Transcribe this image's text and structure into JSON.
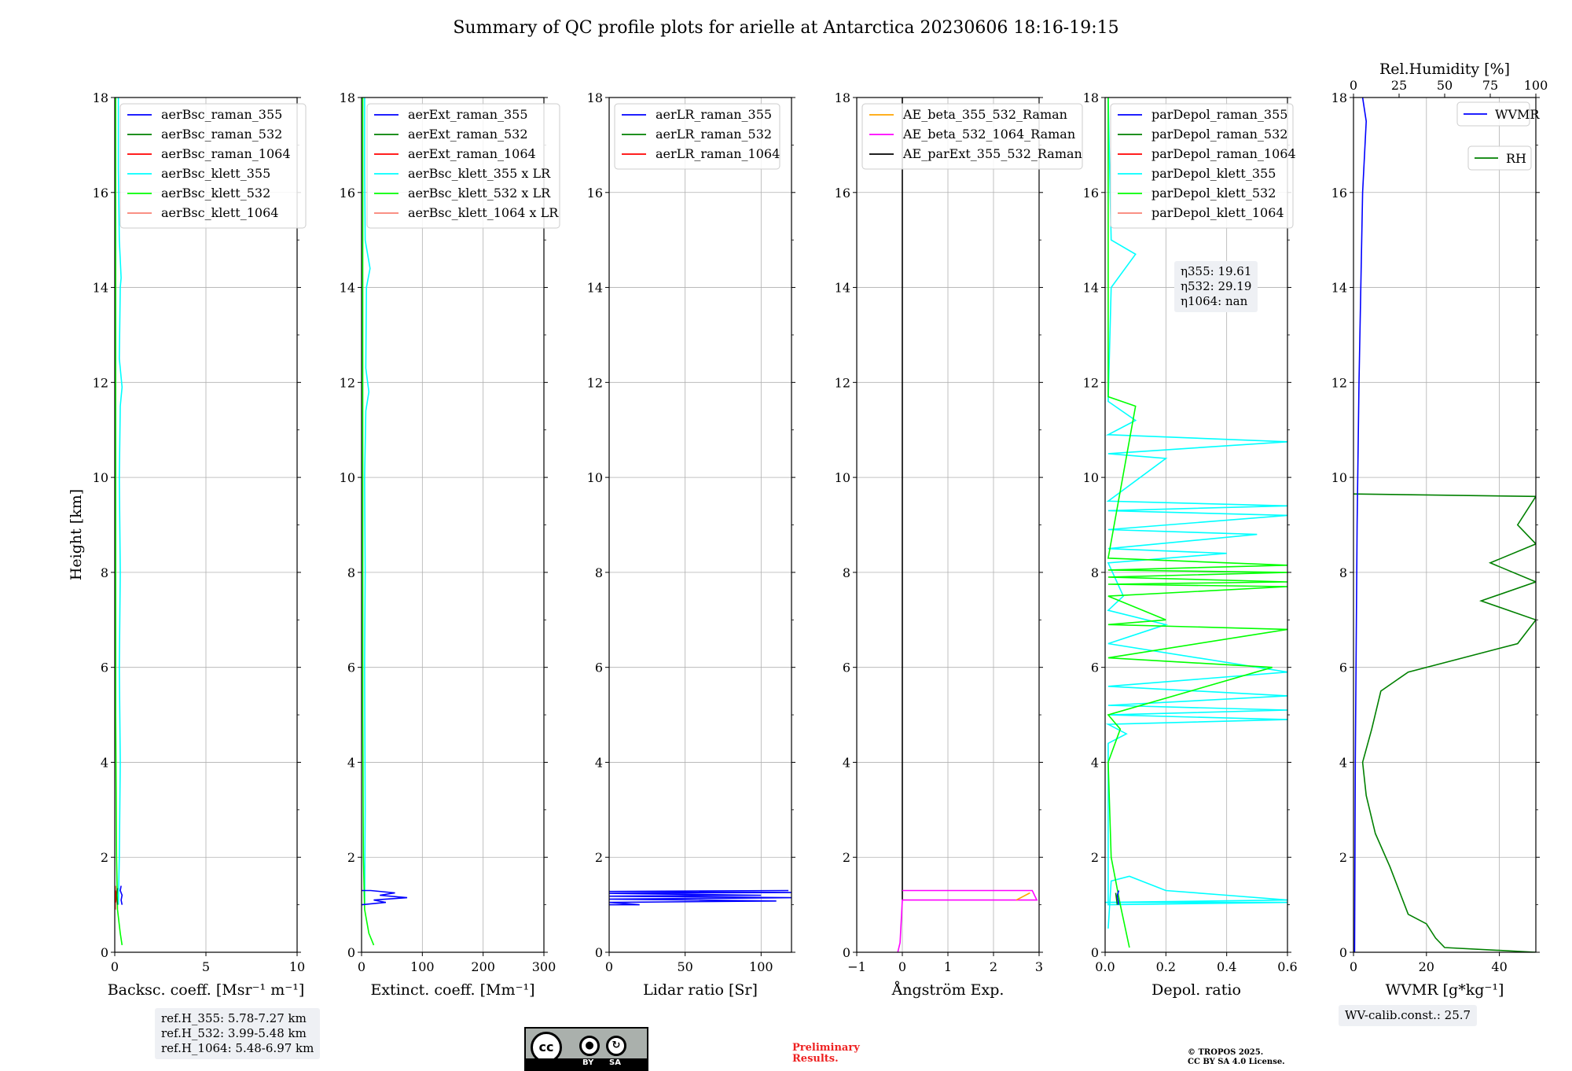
{
  "title": "Summary of QC profile plots for arielle at Antarctica 20230606 18:16-19:15",
  "shared_ylabel": "Height [km]",
  "ref_heights": [
    "ref.H_355: 5.78-7.27 km",
    "ref.H_532: 3.99-5.48 km",
    "ref.H_1064: 5.48-6.97 km"
  ],
  "eta": [
    "η355: 19.61",
    "η532: 29.19",
    "η1064: nan"
  ],
  "wv_calib": "WV-calib.const.: 25.7",
  "preliminary": [
    "Preliminary",
    "Results."
  ],
  "copyright": [
    "© TROPOS 2025.",
    "CC BY SA 4.0 License."
  ],
  "license_badge": {
    "cc": "cc",
    "by": "BY",
    "sa": "SA"
  },
  "colors": {
    "blue": "#0000ff",
    "green": "#008000",
    "red": "#ff0000",
    "cyan": "#00ffff",
    "lime": "#00ff00",
    "salmon": "#fa8072",
    "orange": "#ffa500",
    "magenta": "#ff00ff",
    "black": "#000000"
  },
  "chart_data": [
    {
      "type": "line",
      "xlabel": "Backsc. coeff. [Msr⁻¹ m⁻¹]",
      "xlim": [
        0,
        10
      ],
      "ylim": [
        0,
        18
      ],
      "xticks": [
        "0",
        "5",
        "10"
      ],
      "legend_loc": "upper-left",
      "legend": [
        "aerBsc_raman_355",
        "aerBsc_raman_532",
        "aerBsc_raman_1064",
        "aerBsc_klett_355",
        "aerBsc_klett_532",
        "aerBsc_klett_1064"
      ],
      "series": [
        {
          "name": "aerBsc_klett_355",
          "color": "cyan",
          "points": [
            [
              0.2,
              1.0
            ],
            [
              0.25,
              2.0
            ],
            [
              0.3,
              4.0
            ],
            [
              0.25,
              6.0
            ],
            [
              0.3,
              8.0
            ],
            [
              0.25,
              10.0
            ],
            [
              0.3,
              11.5
            ],
            [
              0.4,
              11.9
            ],
            [
              0.25,
              12.5
            ],
            [
              0.3,
              14.0
            ],
            [
              0.35,
              14.2
            ],
            [
              0.25,
              15.0
            ],
            [
              0.2,
              16.5
            ],
            [
              0.2,
              18.0
            ]
          ]
        },
        {
          "name": "aerBsc_klett_532",
          "color": "lime",
          "points": [
            [
              0.4,
              0.15
            ],
            [
              0.3,
              0.4
            ],
            [
              0.15,
              0.9
            ],
            [
              0.1,
              2.0
            ],
            [
              0.05,
              5.0
            ],
            [
              0.05,
              12.0
            ],
            [
              0.05,
              18.0
            ]
          ]
        },
        {
          "name": "aerBsc_klett_1064",
          "color": "salmon",
          "points": [
            [
              0.05,
              0.9
            ],
            [
              0.05,
              1.4
            ]
          ]
        },
        {
          "name": "aerBsc_raman_355",
          "color": "blue",
          "points": [
            [
              0.4,
              1.0
            ],
            [
              0.35,
              1.1
            ],
            [
              0.4,
              1.2
            ],
            [
              0.3,
              1.3
            ],
            [
              0.35,
              1.4
            ]
          ]
        },
        {
          "name": "aerBsc_raman_532",
          "color": "green",
          "points": [
            [
              0.15,
              1.0
            ],
            [
              0.1,
              1.2
            ],
            [
              0.15,
              1.35
            ]
          ]
        },
        {
          "name": "aerBsc_raman_1064",
          "color": "red",
          "points": [
            [
              0.05,
              1.05
            ],
            [
              0.05,
              1.3
            ]
          ]
        }
      ]
    },
    {
      "type": "line",
      "xlabel": "Extinct. coeff. [Mm⁻¹]",
      "xlim": [
        0,
        300
      ],
      "ylim": [
        0,
        18
      ],
      "xticks": [
        "0",
        "100",
        "200",
        "300"
      ],
      "legend_loc": "upper-left",
      "legend": [
        "aerExt_raman_355",
        "aerExt_raman_532",
        "aerExt_raman_1064",
        "aerBsc_klett_355 x LR",
        "aerBsc_klett_532 x LR",
        "aerBsc_klett_1064 x LR"
      ],
      "series": [
        {
          "name": "aerBsc_klett_355 x LR",
          "color": "cyan",
          "points": [
            [
              5,
              1.0
            ],
            [
              6,
              3.0
            ],
            [
              5,
              6.0
            ],
            [
              6,
              8.0
            ],
            [
              5,
              10.0
            ],
            [
              7,
              11.4
            ],
            [
              12,
              11.8
            ],
            [
              7,
              12.3
            ],
            [
              8,
              14.0
            ],
            [
              14,
              14.4
            ],
            [
              6,
              15.0
            ],
            [
              5,
              16.5
            ],
            [
              5,
              18.0
            ]
          ]
        },
        {
          "name": "aerBsc_klett_532 x LR",
          "color": "lime",
          "points": [
            [
              20,
              0.15
            ],
            [
              12,
              0.4
            ],
            [
              5,
              0.9
            ],
            [
              3,
              2.0
            ],
            [
              2,
              5.0
            ],
            [
              2,
              18.0
            ]
          ]
        },
        {
          "name": "aerExt_raman_355",
          "color": "blue",
          "points": [
            [
              0,
              1.0
            ],
            [
              40,
              1.05
            ],
            [
              20,
              1.1
            ],
            [
              75,
              1.15
            ],
            [
              30,
              1.2
            ],
            [
              55,
              1.25
            ],
            [
              15,
              1.3
            ],
            [
              0,
              1.3
            ]
          ]
        }
      ]
    },
    {
      "type": "line",
      "xlabel": "Lidar ratio [Sr]",
      "xlim": [
        0,
        120
      ],
      "ylim": [
        0,
        18
      ],
      "xticks": [
        "0",
        "50",
        "100"
      ],
      "legend_loc": "upper-left",
      "legend": [
        "aerLR_raman_355",
        "aerLR_raman_532",
        "aerLR_raman_1064"
      ],
      "series": [
        {
          "name": "aerLR_raman_355",
          "color": "blue",
          "points": [
            [
              0,
              1.0
            ],
            [
              20,
              1.0
            ],
            [
              0,
              1.05
            ],
            [
              110,
              1.08
            ],
            [
              0,
              1.12
            ],
            [
              120,
              1.15
            ],
            [
              0,
              1.18
            ],
            [
              100,
              1.2
            ],
            [
              0,
              1.24
            ],
            [
              120,
              1.26
            ],
            [
              0,
              1.28
            ],
            [
              118,
              1.3
            ]
          ]
        }
      ]
    },
    {
      "type": "line",
      "xlabel": "Ångström Exp.",
      "xlim": [
        -1,
        3
      ],
      "ylim": [
        0,
        18
      ],
      "xticks": [
        "−1",
        "0",
        "1",
        "2",
        "3"
      ],
      "legend_loc": "upper-left",
      "legend": [
        "AE_beta_355_532_Raman",
        "AE_beta_532_1064_Raman",
        "AE_parExt_355_532_Raman"
      ],
      "series": [
        {
          "name": "AE_parExt_355_532_Raman",
          "color": "black",
          "points": [
            [
              0,
              1.1
            ],
            [
              0,
              18.0
            ]
          ]
        },
        {
          "name": "AE_beta_532_1064_Raman",
          "color": "magenta",
          "points": [
            [
              -0.1,
              0.0
            ],
            [
              -0.05,
              0.2
            ],
            [
              0,
              1.1
            ],
            [
              2.95,
              1.1
            ],
            [
              2.85,
              1.3
            ],
            [
              0,
              1.3
            ]
          ]
        },
        {
          "name": "AE_beta_355_532_Raman",
          "color": "orange",
          "points": [
            [
              2.5,
              1.1
            ],
            [
              2.8,
              1.25
            ]
          ]
        }
      ]
    },
    {
      "type": "line",
      "xlabel": "Depol. ratio",
      "xlim": [
        0,
        0.6
      ],
      "ylim": [
        0,
        18
      ],
      "xticks": [
        "0.0",
        "0.2",
        "0.4",
        "0.6"
      ],
      "legend_loc": "upper-left",
      "legend": [
        "parDepol_raman_355",
        "parDepol_raman_532",
        "parDepol_raman_1064",
        "parDepol_klett_355",
        "parDepol_klett_532",
        "parDepol_klett_1064"
      ],
      "series": [
        {
          "name": "parDepol_klett_355",
          "color": "cyan",
          "points": [
            [
              0.01,
              0.5
            ],
            [
              0.02,
              1.5
            ],
            [
              0.08,
              1.6
            ],
            [
              0.2,
              1.3
            ],
            [
              0.4,
              1.2
            ],
            [
              0.6,
              1.1
            ],
            [
              0.0,
              1.05
            ],
            [
              0.6,
              1.05
            ],
            [
              0.01,
              1.0
            ],
            [
              0.01,
              4.4
            ],
            [
              0.07,
              4.6
            ],
            [
              0.01,
              4.8
            ],
            [
              0.6,
              4.9
            ],
            [
              0.01,
              5.0
            ],
            [
              0.6,
              5.1
            ],
            [
              0.01,
              5.2
            ],
            [
              0.6,
              5.4
            ],
            [
              0.01,
              5.6
            ],
            [
              0.6,
              5.9
            ],
            [
              0.01,
              6.5
            ],
            [
              0.2,
              6.9
            ],
            [
              0.01,
              7.2
            ],
            [
              0.06,
              7.5
            ],
            [
              0.01,
              8.2
            ],
            [
              0.4,
              8.4
            ],
            [
              0.01,
              8.5
            ],
            [
              0.5,
              8.8
            ],
            [
              0.01,
              8.9
            ],
            [
              0.6,
              9.2
            ],
            [
              0.01,
              9.3
            ],
            [
              0.6,
              9.4
            ],
            [
              0.01,
              9.5
            ],
            [
              0.2,
              10.4
            ],
            [
              0.01,
              10.5
            ],
            [
              0.6,
              10.75
            ],
            [
              0.01,
              10.9
            ],
            [
              0.1,
              11.2
            ],
            [
              0.01,
              11.6
            ],
            [
              0.02,
              14.0
            ],
            [
              0.1,
              14.7
            ],
            [
              0.02,
              15.0
            ],
            [
              0.01,
              18.0
            ]
          ]
        },
        {
          "name": "parDepol_klett_532",
          "color": "lime",
          "points": [
            [
              0.08,
              0.1
            ],
            [
              0.05,
              1.0
            ],
            [
              0.02,
              2.0
            ],
            [
              0.01,
              4.0
            ],
            [
              0.05,
              4.7
            ],
            [
              0.01,
              5.0
            ],
            [
              0.55,
              6.0
            ],
            [
              0.01,
              6.2
            ],
            [
              0.6,
              6.8
            ],
            [
              0.01,
              6.9
            ],
            [
              0.2,
              7.0
            ],
            [
              0.01,
              7.5
            ],
            [
              0.6,
              7.7
            ],
            [
              0.01,
              7.75
            ],
            [
              0.6,
              7.8
            ],
            [
              0.01,
              7.9
            ],
            [
              0.6,
              8.0
            ],
            [
              0.01,
              8.05
            ],
            [
              0.6,
              8.15
            ],
            [
              0.01,
              8.3
            ],
            [
              0.1,
              11.5
            ],
            [
              0.01,
              11.7
            ],
            [
              0.01,
              18.0
            ]
          ]
        },
        {
          "name": "parDepol_raman_355",
          "color": "blue",
          "points": [
            [
              0.045,
              1.0
            ],
            [
              0.04,
              1.2
            ],
            [
              0.045,
              1.3
            ]
          ]
        },
        {
          "name": "parDepol_raman_532",
          "color": "green",
          "points": [
            [
              0.04,
              1.0
            ],
            [
              0.035,
              1.25
            ]
          ]
        }
      ]
    },
    {
      "type": "line",
      "xlabel": "WVMR [g*kg⁻¹]",
      "xlim": [
        0,
        50
      ],
      "ylim": [
        0,
        18
      ],
      "xticks": [
        "0",
        "20",
        "40"
      ],
      "top_axis": {
        "label": "Rel.Humidity [%]",
        "xlim": [
          0,
          100
        ],
        "ticks": [
          "0",
          "25",
          "50",
          "75",
          "100"
        ]
      },
      "legend_loc": "upper-right",
      "legend": [
        "WVMR",
        "RH"
      ],
      "series": [
        {
          "name": "RH",
          "color": "green",
          "axis": "top",
          "points": [
            [
              100,
              0.0
            ],
            [
              50,
              0.1
            ],
            [
              45,
              0.3
            ],
            [
              40,
              0.6
            ],
            [
              30,
              0.8
            ],
            [
              25,
              1.3
            ],
            [
              20,
              1.8
            ],
            [
              12,
              2.5
            ],
            [
              7,
              3.3
            ],
            [
              5,
              4.0
            ],
            [
              10,
              4.7
            ],
            [
              15,
              5.5
            ],
            [
              30,
              5.9
            ],
            [
              60,
              6.2
            ],
            [
              90,
              6.5
            ],
            [
              100,
              7.0
            ],
            [
              70,
              7.4
            ],
            [
              100,
              7.8
            ],
            [
              75,
              8.2
            ],
            [
              100,
              8.6
            ],
            [
              90,
              9.0
            ],
            [
              100,
              9.6
            ],
            [
              0,
              9.65
            ]
          ]
        },
        {
          "name": "WVMR",
          "color": "blue",
          "axis": "bottom",
          "points": [
            [
              0.3,
              0.0
            ],
            [
              0.5,
              4.0
            ],
            [
              1.0,
              9.0
            ],
            [
              1.5,
              12.0
            ],
            [
              2.0,
              14.0
            ],
            [
              2.5,
              16.0
            ],
            [
              3.5,
              17.5
            ],
            [
              2.5,
              18.0
            ]
          ]
        }
      ]
    }
  ]
}
